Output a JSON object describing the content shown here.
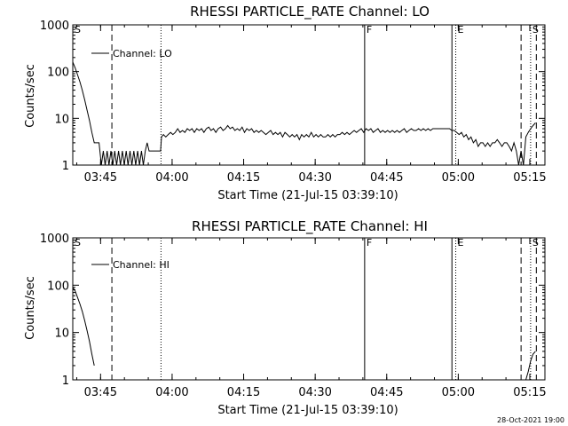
{
  "footer": {
    "timestamp": "28-Oct-2021 19:00"
  },
  "colors": {
    "background": "#ffffff",
    "foreground": "#000000"
  },
  "chart_data": [
    {
      "type": "line",
      "title": "RHESSI PARTICLE_RATE Channel: LO",
      "xlabel": "Start Time (21-Jul-15 03:39:10)",
      "ylabel": "Counts/sec",
      "yscale": "log",
      "ylim": [
        1,
        1000
      ],
      "xlim_minutes": [
        0,
        99
      ],
      "x_unit": "minutes after 03:39:10",
      "x_ticks": [
        {
          "label": "03:45",
          "value": 5.83
        },
        {
          "label": "04:00",
          "value": 20.83
        },
        {
          "label": "04:15",
          "value": 35.83
        },
        {
          "label": "04:30",
          "value": 50.83
        },
        {
          "label": "04:45",
          "value": 65.83
        },
        {
          "label": "05:00",
          "value": 80.83
        },
        {
          "label": "05:15",
          "value": 95.83
        }
      ],
      "y_ticks": [
        {
          "label": "1",
          "value": 1
        },
        {
          "label": "10",
          "value": 10
        },
        {
          "label": "100",
          "value": 100
        },
        {
          "label": "1000",
          "value": 1000
        }
      ],
      "legend": {
        "label": "Channel: LO",
        "position": "top-left"
      },
      "markers": [
        {
          "label": "S",
          "value": 0,
          "style": "none"
        },
        {
          "label": "",
          "value": 8.2,
          "style": "dashed"
        },
        {
          "label": "",
          "value": 18.5,
          "style": "dotted"
        },
        {
          "label": "F",
          "value": 61.2,
          "style": "solid"
        },
        {
          "label": "",
          "value": 79.5,
          "style": "solid"
        },
        {
          "label": "E",
          "value": 80.3,
          "style": "dotted"
        },
        {
          "label": "",
          "value": 94.0,
          "style": "dashed"
        },
        {
          "label": "S",
          "value": 96.0,
          "style": "dotted"
        },
        {
          "label": "",
          "value": 97.2,
          "style": "dashed"
        }
      ],
      "series": [
        {
          "values": [
            [
              0,
              160
            ],
            [
              0.5,
              120
            ],
            [
              1,
              85
            ],
            [
              1.5,
              60
            ],
            [
              2,
              40
            ],
            [
              2.5,
              25
            ],
            [
              3,
              15
            ],
            [
              3.5,
              9
            ],
            [
              4,
              5
            ],
            [
              4.5,
              3
            ],
            [
              5,
              3
            ],
            [
              5.5,
              3
            ],
            [
              6,
              1
            ],
            [
              6.4,
              2
            ],
            [
              6.8,
              1
            ],
            [
              7.2,
              2
            ],
            [
              7.6,
              1
            ],
            [
              8,
              2
            ],
            [
              8.4,
              1
            ],
            [
              8.8,
              2
            ],
            [
              9.2,
              1
            ],
            [
              9.6,
              2
            ],
            [
              10,
              1
            ],
            [
              10.4,
              2
            ],
            [
              10.8,
              1
            ],
            [
              11.2,
              2
            ],
            [
              11.6,
              1
            ],
            [
              12,
              2
            ],
            [
              12.4,
              1
            ],
            [
              12.8,
              2
            ],
            [
              13.2,
              1
            ],
            [
              13.6,
              2
            ],
            [
              14,
              1
            ],
            [
              14.4,
              2
            ],
            [
              14.8,
              1
            ],
            [
              15.2,
              2
            ],
            [
              15.6,
              3
            ],
            [
              16,
              2
            ],
            [
              17,
              2
            ],
            [
              18,
              2
            ],
            [
              18.4,
              2
            ],
            [
              18.6,
              4
            ],
            [
              19,
              4.5
            ],
            [
              19.5,
              4
            ],
            [
              20,
              4.5
            ],
            [
              20.5,
              5
            ],
            [
              21,
              4.5
            ],
            [
              21.5,
              5
            ],
            [
              22,
              6
            ],
            [
              22.5,
              5
            ],
            [
              23,
              5.5
            ],
            [
              23.5,
              5
            ],
            [
              24,
              6
            ],
            [
              24.5,
              5.5
            ],
            [
              25,
              6
            ],
            [
              25.5,
              5
            ],
            [
              26,
              6
            ],
            [
              26.5,
              5.5
            ],
            [
              27,
              6
            ],
            [
              27.5,
              5
            ],
            [
              28,
              6
            ],
            [
              28.5,
              6.5
            ],
            [
              29,
              5.5
            ],
            [
              29.5,
              6
            ],
            [
              30,
              5
            ],
            [
              30.5,
              6
            ],
            [
              31,
              6.5
            ],
            [
              31.5,
              5.5
            ],
            [
              32,
              6
            ],
            [
              32.5,
              7
            ],
            [
              33,
              6
            ],
            [
              33.5,
              6.5
            ],
            [
              34,
              5.5
            ],
            [
              34.5,
              6
            ],
            [
              35,
              5.5
            ],
            [
              35.5,
              6.5
            ],
            [
              36,
              5
            ],
            [
              36.5,
              6
            ],
            [
              37,
              5.5
            ],
            [
              37.5,
              6
            ],
            [
              38,
              5
            ],
            [
              38.5,
              5.5
            ],
            [
              39,
              5
            ],
            [
              39.5,
              5.5
            ],
            [
              40,
              5
            ],
            [
              40.5,
              4.5
            ],
            [
              41,
              5
            ],
            [
              41.5,
              5.5
            ],
            [
              42,
              4.5
            ],
            [
              42.5,
              5
            ],
            [
              43,
              4.5
            ],
            [
              43.5,
              5
            ],
            [
              44,
              4
            ],
            [
              44.5,
              5
            ],
            [
              45,
              4.5
            ],
            [
              45.5,
              4
            ],
            [
              46,
              4.5
            ],
            [
              46.5,
              4
            ],
            [
              47,
              4.5
            ],
            [
              47.5,
              3.5
            ],
            [
              48,
              4.5
            ],
            [
              48.5,
              4
            ],
            [
              49,
              4.5
            ],
            [
              49.5,
              4
            ],
            [
              50,
              5
            ],
            [
              50.5,
              4
            ],
            [
              51,
              4.5
            ],
            [
              51.5,
              4
            ],
            [
              52,
              4.5
            ],
            [
              52.5,
              4
            ],
            [
              53,
              4
            ],
            [
              53.5,
              4.5
            ],
            [
              54,
              4
            ],
            [
              54.5,
              4.5
            ],
            [
              55,
              4
            ],
            [
              55.5,
              4.5
            ],
            [
              56,
              4.5
            ],
            [
              56.5,
              5
            ],
            [
              57,
              4.5
            ],
            [
              57.5,
              5
            ],
            [
              58,
              4.5
            ],
            [
              58.5,
              5
            ],
            [
              59,
              5.5
            ],
            [
              59.5,
              5
            ],
            [
              60,
              5.5
            ],
            [
              60.5,
              6
            ],
            [
              61,
              5
            ],
            [
              61.5,
              6
            ],
            [
              62,
              5.5
            ],
            [
              62.5,
              6
            ],
            [
              63,
              5
            ],
            [
              63.5,
              5.5
            ],
            [
              64,
              6
            ],
            [
              64.5,
              5
            ],
            [
              65,
              5.5
            ],
            [
              65.5,
              5
            ],
            [
              66,
              5.5
            ],
            [
              66.5,
              5
            ],
            [
              67,
              5.5
            ],
            [
              67.5,
              5
            ],
            [
              68,
              5.5
            ],
            [
              68.5,
              5
            ],
            [
              69,
              5.5
            ],
            [
              69.5,
              6
            ],
            [
              70,
              5
            ],
            [
              70.5,
              5.5
            ],
            [
              71,
              6
            ],
            [
              71.5,
              5.5
            ],
            [
              72,
              5.5
            ],
            [
              72.5,
              6
            ],
            [
              73,
              5.5
            ],
            [
              73.5,
              6
            ],
            [
              74,
              5.5
            ],
            [
              74.5,
              6
            ],
            [
              75,
              5.5
            ],
            [
              75.5,
              6
            ],
            [
              76,
              6
            ],
            [
              76.5,
              6
            ],
            [
              77,
              6
            ],
            [
              77.5,
              6
            ],
            [
              78,
              6
            ],
            [
              78.5,
              6
            ],
            [
              79,
              6
            ],
            [
              79.5,
              5.5
            ],
            [
              80,
              5.5
            ],
            [
              80.5,
              5
            ],
            [
              81,
              4.5
            ],
            [
              81.5,
              5
            ],
            [
              82,
              4
            ],
            [
              82.5,
              4.5
            ],
            [
              83,
              3.5
            ],
            [
              83.5,
              4
            ],
            [
              84,
              3
            ],
            [
              84.5,
              3.5
            ],
            [
              85,
              2.5
            ],
            [
              85.5,
              3
            ],
            [
              86,
              3
            ],
            [
              86.5,
              2.5
            ],
            [
              87,
              3
            ],
            [
              87.5,
              2.5
            ],
            [
              88,
              3
            ],
            [
              88.5,
              3
            ],
            [
              89,
              3.5
            ],
            [
              89.5,
              3
            ],
            [
              90,
              2.5
            ],
            [
              90.5,
              3
            ],
            [
              91,
              3
            ],
            [
              91.5,
              2.5
            ],
            [
              92,
              2
            ],
            [
              92.5,
              3
            ],
            [
              93,
              2
            ],
            [
              93.5,
              1
            ],
            [
              94,
              2
            ],
            [
              94.5,
              1
            ],
            [
              95,
              4
            ],
            [
              95.5,
              5
            ],
            [
              96,
              6
            ],
            [
              96.5,
              7
            ],
            [
              97,
              8
            ]
          ]
        }
      ]
    },
    {
      "type": "line",
      "title": "RHESSI PARTICLE_RATE Channel: HI",
      "xlabel": "Start Time (21-Jul-15 03:39:10)",
      "ylabel": "Counts/sec",
      "yscale": "log",
      "ylim": [
        1,
        1000
      ],
      "xlim_minutes": [
        0,
        99
      ],
      "x_unit": "minutes after 03:39:10",
      "x_ticks": [
        {
          "label": "03:45",
          "value": 5.83
        },
        {
          "label": "04:00",
          "value": 20.83
        },
        {
          "label": "04:15",
          "value": 35.83
        },
        {
          "label": "04:30",
          "value": 50.83
        },
        {
          "label": "04:45",
          "value": 65.83
        },
        {
          "label": "05:00",
          "value": 80.83
        },
        {
          "label": "05:15",
          "value": 95.83
        }
      ],
      "y_ticks": [
        {
          "label": "1",
          "value": 1
        },
        {
          "label": "10",
          "value": 10
        },
        {
          "label": "100",
          "value": 100
        },
        {
          "label": "1000",
          "value": 1000
        }
      ],
      "legend": {
        "label": "Channel: HI",
        "position": "top-left"
      },
      "markers": [
        {
          "label": "S",
          "value": 0,
          "style": "none"
        },
        {
          "label": "",
          "value": 8.2,
          "style": "dashed"
        },
        {
          "label": "",
          "value": 18.5,
          "style": "dotted"
        },
        {
          "label": "F",
          "value": 61.2,
          "style": "solid"
        },
        {
          "label": "",
          "value": 79.5,
          "style": "solid"
        },
        {
          "label": "E",
          "value": 80.3,
          "style": "dotted"
        },
        {
          "label": "",
          "value": 94.0,
          "style": "dashed"
        },
        {
          "label": "S",
          "value": 96.0,
          "style": "dotted"
        },
        {
          "label": "",
          "value": 97.2,
          "style": "dashed"
        }
      ],
      "series": [
        {
          "values": [
            [
              0,
              90
            ],
            [
              0.5,
              75
            ],
            [
              1,
              55
            ],
            [
              1.5,
              40
            ],
            [
              2,
              28
            ],
            [
              2.5,
              18
            ],
            [
              3,
              11
            ],
            [
              3.5,
              6.5
            ],
            [
              4,
              3.5
            ],
            [
              4.5,
              2
            ]
          ]
        },
        {
          "values": [
            [
              95,
              1
            ],
            [
              95.5,
              1.5
            ],
            [
              96,
              2.5
            ],
            [
              96.5,
              3.5
            ],
            [
              97,
              4
            ]
          ]
        }
      ]
    }
  ]
}
